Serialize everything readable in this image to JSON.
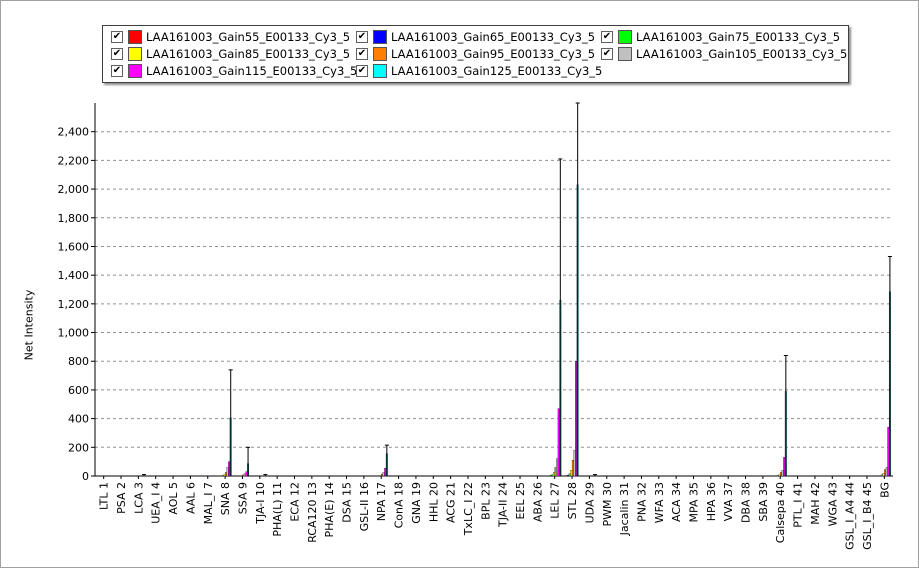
{
  "chart_data": {
    "type": "bar",
    "ylabel": "Net Intensity",
    "ylim": [
      0,
      2600
    ],
    "yticks": [
      "0",
      "200",
      "400",
      "600",
      "800",
      "1,000",
      "1,200",
      "1,400",
      "1,600",
      "1,800",
      "2,000",
      "2,200",
      "2,400"
    ],
    "ytick_values": [
      0,
      200,
      400,
      600,
      800,
      1000,
      1200,
      1400,
      1600,
      1800,
      2000,
      2200,
      2400
    ],
    "grid": true,
    "legend_position": "top",
    "categories": [
      "LTL 1",
      "PSA 2",
      "LCA 3",
      "UEA_I 4",
      "AOL 5",
      "AAL 6",
      "MAL_I 7",
      "SNA 8",
      "SSA 9",
      "TJA-I 10",
      "PHA(L) 11",
      "ECA 12",
      "RCA120 13",
      "PHA(E) 14",
      "DSA 15",
      "GSL-II 16",
      "NPA 17",
      "ConA 18",
      "GNA 19",
      "HHL 20",
      "ACG 21",
      "TxLC_I 22",
      "BPL 23",
      "TJA-II 24",
      "EEL 25",
      "ABA 26",
      "LEL 27",
      "STL 28",
      "UDA 29",
      "PWM 30",
      "Jacalin 31",
      "PNA 32",
      "WFA 33",
      "ACA 34",
      "MPA 35",
      "HPA 36",
      "VVA 37",
      "DBA 38",
      "SBA 39",
      "Calsepa 40",
      "PTL_I 41",
      "MAH 42",
      "WGA 43",
      "GSL_I_A4 44",
      "GSL_I_B4 45",
      "BG"
    ],
    "series": [
      {
        "name": "LAA161003_Gain55_E00133_Cy3_5",
        "color": "#ff0000",
        "checked": "✔",
        "values": [
          0,
          0,
          0,
          0,
          0,
          0,
          0,
          1,
          0,
          0,
          0,
          0,
          0,
          0,
          0,
          0,
          0,
          0,
          0,
          0,
          0,
          0,
          0,
          0,
          0,
          0,
          2,
          3,
          0,
          0,
          0,
          0,
          0,
          0,
          0,
          0,
          0,
          0,
          0,
          1,
          0,
          0,
          0,
          0,
          0,
          1
        ]
      },
      {
        "name": "LAA161003_Gain65_E00133_Cy3_5",
        "color": "#0000ff",
        "checked": "✔",
        "values": [
          0,
          0,
          0,
          0,
          0,
          0,
          0,
          2,
          0,
          0,
          0,
          0,
          0,
          0,
          0,
          0,
          1,
          0,
          0,
          0,
          0,
          0,
          0,
          0,
          0,
          0,
          4,
          6,
          0,
          0,
          0,
          0,
          0,
          0,
          0,
          0,
          0,
          0,
          0,
          2,
          0,
          0,
          0,
          0,
          0,
          3
        ]
      },
      {
        "name": "LAA161003_Gain75_E00133_Cy3_5",
        "color": "#00ff00",
        "checked": "✔",
        "values": [
          0,
          0,
          0,
          0,
          0,
          0,
          0,
          4,
          1,
          0,
          0,
          0,
          0,
          0,
          0,
          0,
          2,
          0,
          0,
          0,
          0,
          0,
          0,
          0,
          0,
          0,
          10,
          16,
          0,
          0,
          0,
          0,
          0,
          0,
          0,
          0,
          0,
          0,
          0,
          4,
          0,
          0,
          0,
          0,
          0,
          8
        ]
      },
      {
        "name": "LAA161003_Gain85_E00133_Cy3_5",
        "color": "#ffff00",
        "checked": "✔",
        "values": [
          0,
          0,
          0,
          0,
          0,
          0,
          0,
          10,
          2,
          0,
          0,
          0,
          0,
          0,
          0,
          0,
          4,
          0,
          0,
          0,
          0,
          0,
          0,
          0,
          0,
          0,
          25,
          40,
          0,
          0,
          0,
          0,
          0,
          0,
          0,
          0,
          0,
          0,
          0,
          10,
          0,
          0,
          0,
          0,
          0,
          20
        ]
      },
      {
        "name": "LAA161003_Gain95_E00133_Cy3_5",
        "color": "#ff8000",
        "checked": "✔",
        "values": [
          0,
          0,
          0,
          0,
          0,
          0,
          0,
          25,
          8,
          0,
          0,
          0,
          0,
          0,
          0,
          0,
          12,
          0,
          0,
          0,
          0,
          0,
          0,
          0,
          0,
          0,
          60,
          110,
          0,
          0,
          0,
          0,
          0,
          0,
          0,
          0,
          0,
          0,
          0,
          25,
          0,
          0,
          0,
          0,
          0,
          45
        ]
      },
      {
        "name": "LAA161003_Gain105_E00133_Cy3_5",
        "color": "#c0c0c0",
        "checked": "✔",
        "values": [
          0,
          0,
          0,
          0,
          0,
          0,
          0,
          60,
          15,
          0,
          0,
          0,
          0,
          0,
          0,
          0,
          25,
          0,
          0,
          0,
          0,
          0,
          0,
          0,
          0,
          0,
          120,
          180,
          0,
          0,
          0,
          0,
          0,
          0,
          0,
          0,
          0,
          0,
          0,
          40,
          0,
          0,
          0,
          0,
          0,
          60
        ]
      },
      {
        "name": "LAA161003_Gain115_E00133_Cy3_5",
        "color": "#ff00ff",
        "checked": "✔",
        "values": [
          0,
          0,
          0,
          0,
          0,
          0,
          0,
          100,
          30,
          0,
          0,
          0,
          0,
          0,
          0,
          0,
          55,
          0,
          0,
          0,
          0,
          0,
          0,
          0,
          0,
          0,
          470,
          800,
          0,
          0,
          0,
          0,
          0,
          0,
          0,
          0,
          0,
          0,
          0,
          130,
          0,
          0,
          0,
          0,
          0,
          340
        ]
      },
      {
        "name": "LAA161003_Gain125_E00133_Cy3_5",
        "color": "#00ffff",
        "checked": "✔",
        "values": [
          0,
          0,
          0,
          0,
          0,
          0,
          0,
          405,
          85,
          0,
          0,
          0,
          0,
          0,
          0,
          0,
          155,
          0,
          0,
          0,
          0,
          0,
          0,
          0,
          0,
          0,
          1225,
          2030,
          0,
          0,
          0,
          0,
          0,
          0,
          0,
          0,
          0,
          0,
          0,
          590,
          0,
          0,
          0,
          0,
          0,
          1285
        ]
      }
    ],
    "error_tops": [
      0,
      0,
      10,
      0,
      0,
      0,
      0,
      740,
      200,
      10,
      0,
      0,
      0,
      0,
      0,
      0,
      215,
      0,
      0,
      0,
      0,
      0,
      0,
      0,
      0,
      0,
      2210,
      2600,
      10,
      0,
      0,
      0,
      0,
      0,
      0,
      0,
      0,
      0,
      0,
      840,
      0,
      0,
      0,
      0,
      0,
      1530
    ]
  }
}
